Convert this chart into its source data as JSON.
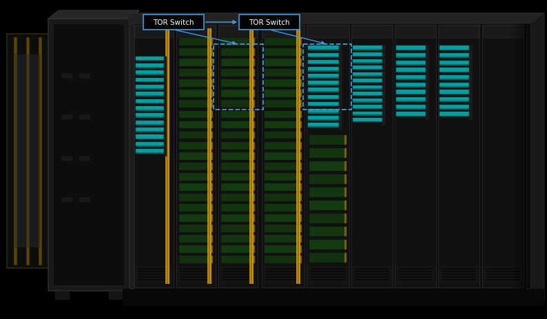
{
  "bg_color": "#000000",
  "fig_width": 7.94,
  "fig_height": 4.64,
  "dpi": 100,
  "label1": "TOR Switch",
  "label2": "TOR Switch",
  "box_color": "#4499dd",
  "text_color": "#ffffff",
  "arrow_color": "#4499dd",
  "cable_teal": "#00b0b0",
  "cable_yellow": "#c8980a",
  "cable_green_dark": "#1a3a18",
  "cable_green_mid": "#234d20",
  "cabinet_frame": "#1e1e1e",
  "cabinet_dark": "#111111",
  "cabinet_very_dark": "#0a0a0a"
}
